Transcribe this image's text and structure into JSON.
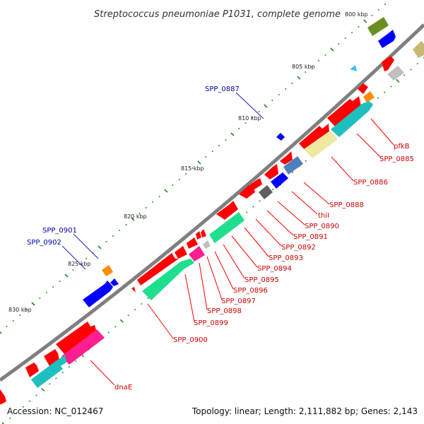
{
  "title": "Streptococcus pneumoniae P1031, complete genome",
  "footer": {
    "accession": "Accession: NC_012467",
    "summary": "Topology: linear; Length: 2,111,882 bp; Genes: 2,143"
  },
  "scale_labels": [
    "800 kbp",
    "805 kbp",
    "810 kbp",
    "815 kbp",
    "820 kbp",
    "825 kbp",
    "830 kbp"
  ],
  "gene_labels": {
    "top_strand": [
      "SPP_0887",
      "SPP_0901",
      "SPP_0902"
    ],
    "bottom_strand": [
      "pfkB",
      "SPP_0885",
      "SPP_0886",
      "SPP_0888",
      "thiI",
      "SPP_0890",
      "SPP_0891",
      "SPP_0892",
      "SPP_0893",
      "SPP_0894",
      "SPP_0895",
      "SPP_0896",
      "SPP_0897",
      "SPP_0898",
      "SPP_0899",
      "SPP_0900",
      "dnaE"
    ]
  },
  "colors": {
    "backbone": "#7f7f7f",
    "cds_forward": "#ff0000",
    "cds_reverse": "#0000ff",
    "label_forward": "#cc0000",
    "label_reverse": "#0000aa",
    "tick": "#228b22",
    "dot": "#2e8b2e",
    "cog_cyan": "#1fbfbf",
    "cog_green": "#1fdf8f",
    "cog_magenta": "#ff1f8f",
    "cog_khaki": "#efe8a0",
    "cog_olive": "#6b8e23",
    "cog_steel": "#4f7fbf",
    "cog_gray": "#5f5f5f",
    "cog_silver": "#bfbfbf",
    "cog_orange": "#ff8c00",
    "cog_lightblue": "#3fbfef"
  }
}
